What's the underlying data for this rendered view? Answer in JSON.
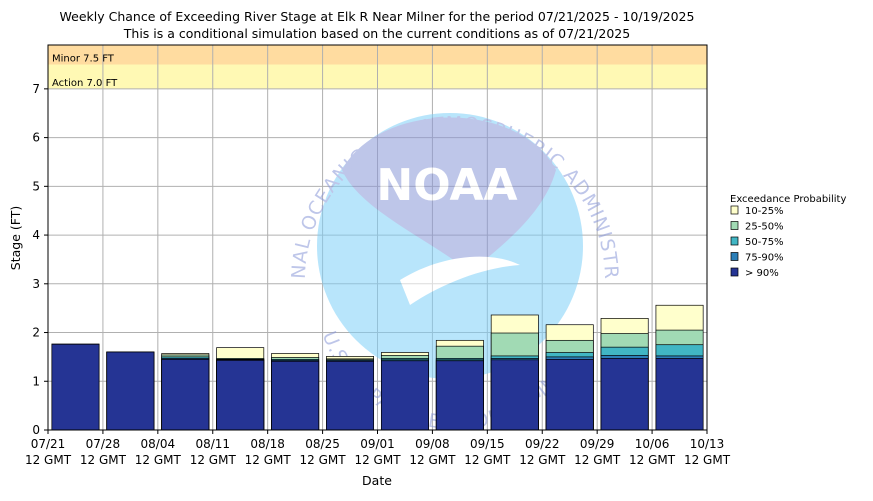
{
  "chart_data": {
    "type": "bar",
    "title": "Weekly Chance of Exceeding River Stage at Elk R Near Milner for the period 07/21/2025 - 10/19/2025",
    "subtitle": "This is a conditional simulation based on the current conditions as of 07/21/2025",
    "xlabel": "Date",
    "ylabel": "Stage (FT)",
    "ylim": [
      0,
      7.9
    ],
    "y_ticks": [
      "0",
      "1",
      "2",
      "3",
      "4",
      "5",
      "6",
      "7"
    ],
    "grid": true,
    "legend_title": "Exceedance Probability",
    "legend_position": "right",
    "x_ticks": [
      {
        "date": "07/21",
        "time": "12 GMT"
      },
      {
        "date": "07/28",
        "time": "12 GMT"
      },
      {
        "date": "08/04",
        "time": "12 GMT"
      },
      {
        "date": "08/11",
        "time": "12 GMT"
      },
      {
        "date": "08/18",
        "time": "12 GMT"
      },
      {
        "date": "08/25",
        "time": "12 GMT"
      },
      {
        "date": "09/01",
        "time": "12 GMT"
      },
      {
        "date": "09/08",
        "time": "12 GMT"
      },
      {
        "date": "09/15",
        "time": "12 GMT"
      },
      {
        "date": "09/22",
        "time": "12 GMT"
      },
      {
        "date": "09/29",
        "time": "12 GMT"
      },
      {
        "date": "10/06",
        "time": "12 GMT"
      },
      {
        "date": "10/13",
        "time": "12 GMT"
      }
    ],
    "categories": [
      "07/21",
      "07/28",
      "08/04",
      "08/11",
      "08/18",
      "08/25",
      "09/01",
      "09/08",
      "09/15",
      "09/22",
      "09/29",
      "10/06"
    ],
    "series": [
      {
        "name": "10-25%",
        "color": "#ffffcc",
        "values": [
          1.76,
          1.6,
          1.57,
          1.69,
          1.57,
          1.51,
          1.59,
          1.84,
          2.36,
          2.16,
          2.29,
          2.56
        ]
      },
      {
        "name": "25-50%",
        "color": "#a1dab4",
        "values": [
          1.76,
          1.6,
          1.54,
          1.47,
          1.49,
          1.46,
          1.53,
          1.72,
          1.99,
          1.84,
          1.98,
          2.05
        ]
      },
      {
        "name": "50-75%",
        "color": "#41b6c4",
        "values": [
          1.76,
          1.6,
          1.5,
          1.45,
          1.45,
          1.44,
          1.47,
          1.47,
          1.52,
          1.59,
          1.7,
          1.75
        ]
      },
      {
        "name": "75-90%",
        "color": "#2c7fb8",
        "values": [
          1.76,
          1.6,
          1.47,
          1.44,
          1.43,
          1.43,
          1.44,
          1.44,
          1.47,
          1.5,
          1.53,
          1.52
        ]
      },
      {
        "name": "> 90%",
        "color": "#253494",
        "values": [
          1.76,
          1.6,
          1.45,
          1.43,
          1.41,
          1.41,
          1.42,
          1.42,
          1.44,
          1.45,
          1.47,
          1.47
        ]
      }
    ],
    "thresholds": [
      {
        "label": "Minor 7.5 FT",
        "value": 7.5,
        "color": "#ffdca0"
      },
      {
        "label": "Action 7.0 FT",
        "value": 7.0,
        "color": "#fff9b4"
      }
    ],
    "watermark": {
      "outer_text": "NATIONAL OCEANIC AND ATMOSPHERIC ADMINISTRATION",
      "inner_text": "U.S. DEPARTMENT OF COMMERCE",
      "logo_text": "NOAA"
    }
  }
}
